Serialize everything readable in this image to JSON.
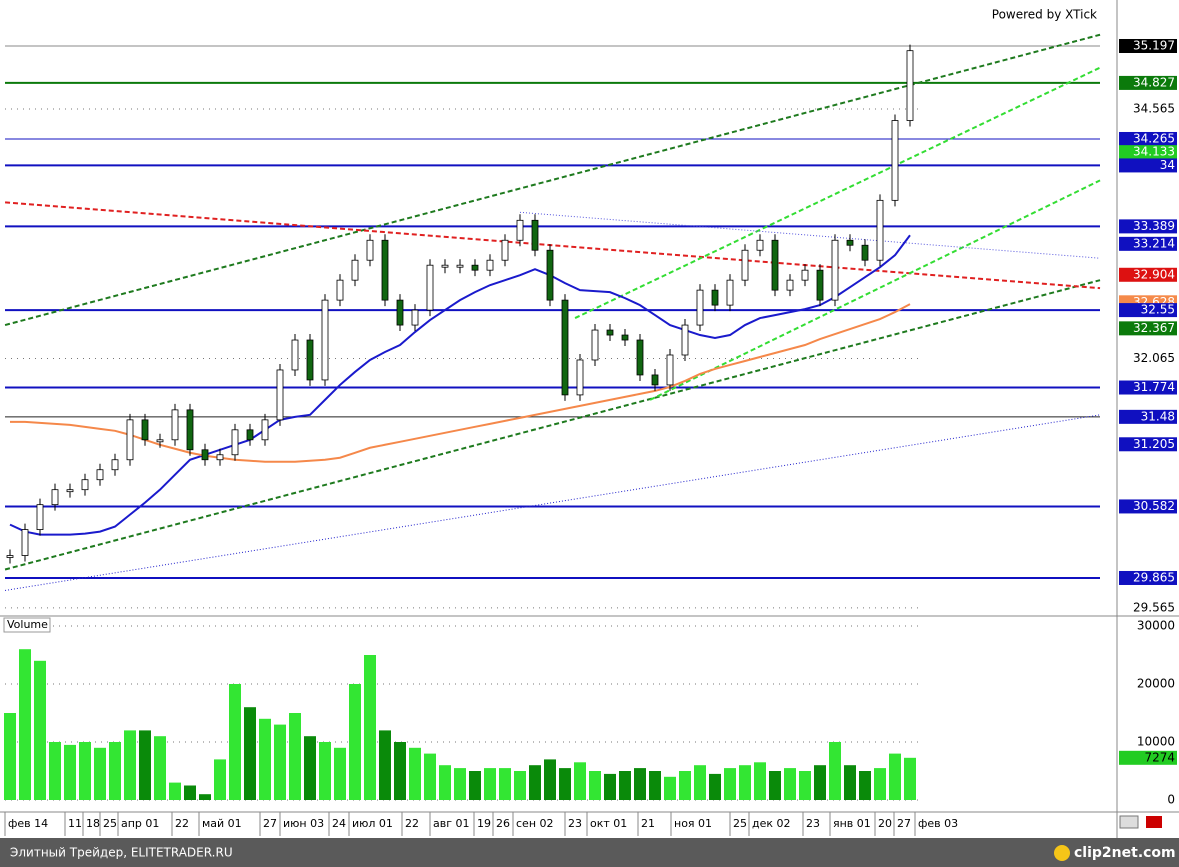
{
  "chart_data": {
    "type": "candlestick",
    "watermark": "Powered by XTick",
    "volume_title": "Volume",
    "footer": "Элитный Трейдер, ELITETRADER.RU",
    "footer_logo": "clip2net.com",
    "date_labels": [
      "фев 14",
      "11",
      "18",
      "25",
      "апр 01",
      "22",
      "май 01",
      "27",
      "июн 03",
      "24",
      "июл 01",
      "22",
      "авг 01",
      "19",
      "26",
      "сен 02",
      "23",
      "окт 01",
      "21",
      "ноя 01",
      "25",
      "дек 02",
      "23",
      "янв 01",
      "20",
      "27",
      "фев 03"
    ],
    "ylim": [
      29.494,
      35.658
    ],
    "yticks": [
      34.565,
      32.065,
      29.565
    ],
    "closes": [
      30.09,
      30.35,
      30.6,
      30.75,
      30.75,
      30.85,
      30.95,
      31.05,
      31.45,
      31.25,
      31.25,
      31.55,
      31.15,
      31.05,
      31.1,
      31.35,
      31.25,
      31.45,
      31.95,
      32.25,
      31.85,
      32.65,
      32.85,
      33.05,
      33.25,
      32.65,
      32.4,
      32.55,
      33.0,
      33.0,
      33.0,
      32.95,
      33.05,
      33.25,
      33.45,
      33.15,
      32.65,
      31.7,
      32.05,
      32.35,
      32.3,
      32.25,
      31.9,
      31.8,
      32.1,
      32.4,
      32.75,
      32.6,
      32.85,
      33.15,
      33.25,
      32.75,
      32.85,
      32.95,
      32.65,
      33.25,
      33.2,
      33.05,
      33.65,
      34.45,
      35.15
    ],
    "moving_averages": [
      {
        "color": "#1a1acc",
        "values": [
          30.4,
          30.33,
          30.3,
          30.3,
          30.3,
          30.31,
          30.33,
          30.38,
          30.5,
          30.62,
          30.75,
          30.9,
          31.05,
          31.1,
          31.15,
          31.2,
          31.25,
          31.35,
          31.45,
          31.48,
          31.5,
          31.65,
          31.8,
          31.93,
          32.05,
          32.13,
          32.2,
          32.33,
          32.45,
          32.55,
          32.65,
          32.73,
          32.8,
          32.85,
          32.9,
          32.96,
          32.9,
          32.82,
          32.75,
          32.74,
          32.73,
          32.67,
          32.6,
          32.5,
          32.4,
          32.35,
          32.3,
          32.27,
          32.3,
          32.4,
          32.47,
          32.5,
          32.53,
          32.56,
          32.6,
          32.68,
          32.78,
          32.88,
          32.98,
          33.1,
          33.3
        ]
      },
      {
        "color": "#f5884a",
        "values": [
          31.43,
          31.43,
          31.42,
          31.41,
          31.4,
          31.38,
          31.36,
          31.34,
          31.3,
          31.25,
          31.2,
          31.16,
          31.12,
          31.09,
          31.07,
          31.05,
          31.04,
          31.03,
          31.03,
          31.03,
          31.04,
          31.05,
          31.07,
          31.12,
          31.17,
          31.2,
          31.23,
          31.26,
          31.29,
          31.32,
          31.35,
          31.38,
          31.41,
          31.44,
          31.47,
          31.5,
          31.53,
          31.56,
          31.59,
          31.62,
          31.65,
          31.68,
          31.71,
          31.74,
          31.78,
          31.84,
          31.91,
          31.96,
          32.0,
          32.04,
          32.08,
          32.12,
          32.16,
          32.2,
          32.26,
          32.31,
          32.36,
          32.41,
          32.46,
          32.53,
          32.61
        ]
      }
    ],
    "trend_lines": [
      {
        "color": "#1e7a1e",
        "style": "dashed",
        "start": [
          -0.33,
          32.4
        ],
        "end": [
          72.67,
          35.31
        ]
      },
      {
        "color": "#1e7a1e",
        "style": "dashed",
        "start": [
          -0.33,
          29.95
        ],
        "end": [
          72.67,
          32.85
        ]
      },
      {
        "color": "#e02020",
        "style": "dashed",
        "start": [
          -0.33,
          33.63
        ],
        "end": [
          72.67,
          32.77
        ]
      },
      {
        "color": "#33dd33",
        "style": "dashed",
        "start": [
          37.67,
          32.47
        ],
        "end": [
          72.67,
          34.98
        ]
      },
      {
        "color": "#33dd33",
        "style": "dashed",
        "start": [
          42.67,
          31.65
        ],
        "end": [
          72.67,
          33.85
        ]
      },
      {
        "color": "#2222cc",
        "style": "dotted",
        "start": [
          -0.33,
          29.74
        ],
        "end": [
          72.67,
          31.5
        ]
      },
      {
        "color": "#5555dd",
        "style": "dotted",
        "start": [
          34,
          33.53
        ],
        "end": [
          72.67,
          33.07
        ]
      }
    ],
    "levels": [
      {
        "value": 35.197,
        "color": "#000000",
        "line": "thin-gray"
      },
      {
        "value": 34.827,
        "color": "#0b7a0b",
        "line": "thick-green"
      },
      {
        "value": 34.265,
        "color": "#1010c0",
        "line": "thin"
      },
      {
        "value": 34.133,
        "color": "#22cc22",
        "line": "none"
      },
      {
        "value": 34.0,
        "color": "#1010c0",
        "line": "thick"
      },
      {
        "value": 33.389,
        "color": "#1010c0",
        "line": "thick"
      },
      {
        "value": 33.214,
        "color": "#1010c0",
        "line": "none"
      },
      {
        "value": 32.904,
        "color": "#dd1111",
        "line": "none"
      },
      {
        "value": 32.628,
        "color": "#f58a4a",
        "line": "none"
      },
      {
        "value": 32.55,
        "color": "#1010c0",
        "line": "thick"
      },
      {
        "value": 32.367,
        "color": "#0b7a0b",
        "line": "none"
      },
      {
        "value": 31.774,
        "color": "#1010c0",
        "line": "thick"
      },
      {
        "value": 31.48,
        "color": "#1010c0",
        "line": "thin-black"
      },
      {
        "value": 31.205,
        "color": "#1010c0",
        "line": "none"
      },
      {
        "value": 30.582,
        "color": "#1010c0",
        "line": "thick"
      },
      {
        "value": 29.865,
        "color": "#1010c0",
        "line": "thick"
      }
    ],
    "volume": [
      15000,
      26000,
      24000,
      10000,
      9500,
      10000,
      9000,
      10000,
      12000,
      12000,
      11000,
      3000,
      2500,
      1000,
      7000,
      20000,
      16000,
      14000,
      13000,
      15000,
      11000,
      10000,
      9000,
      20000,
      25000,
      12000,
      10000,
      9000,
      8000,
      6000,
      5500,
      5000,
      5500,
      5500,
      5000,
      6000,
      7000,
      5500,
      6500,
      5000,
      4500,
      5000,
      5500,
      5000,
      4000,
      5000,
      6000,
      4500,
      5500,
      6000,
      6500,
      5000,
      5500,
      5000,
      6000,
      10000,
      6000,
      5000,
      5500,
      8000,
      7274
    ],
    "volume_ylim": [
      0,
      30000
    ],
    "volume_yticks": [
      30000,
      20000,
      10000,
      0
    ],
    "volume_last": 7274
  }
}
